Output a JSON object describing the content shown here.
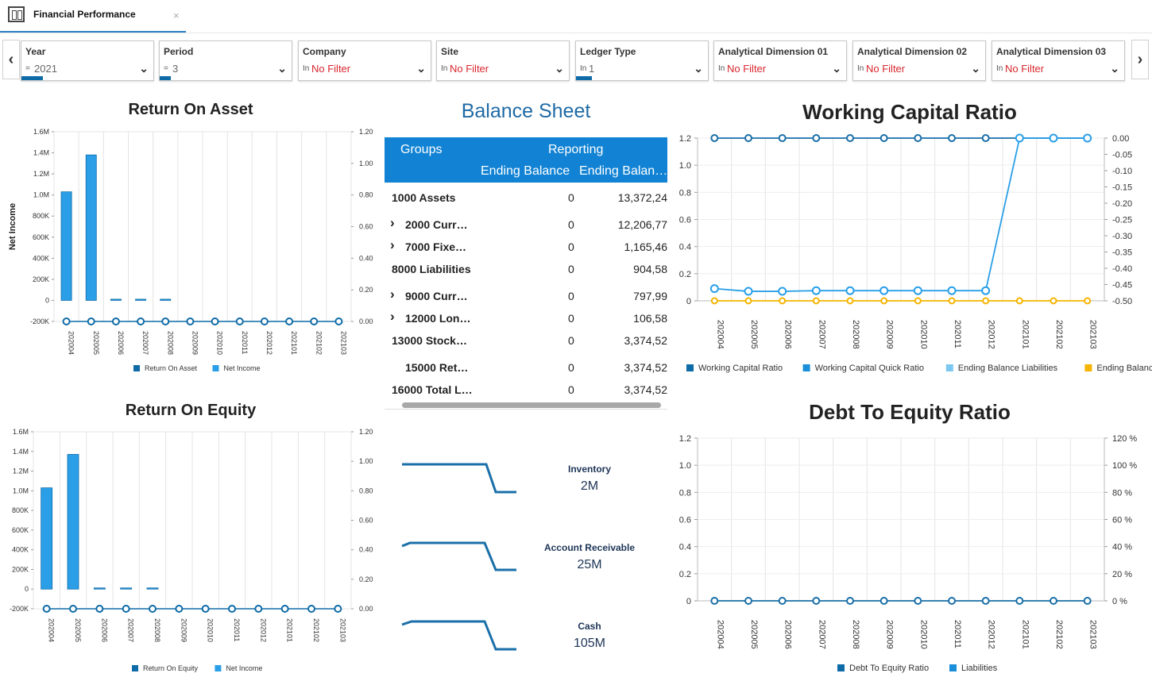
{
  "tab": {
    "title": "Financial Performance",
    "close": "×"
  },
  "filters": [
    {
      "label": "Year",
      "op": "=",
      "value": "2021",
      "red": false
    },
    {
      "label": "Period",
      "op": "=",
      "value": "3",
      "red": false
    },
    {
      "label": "Company",
      "op": "In",
      "value": "No Filter",
      "red": true
    },
    {
      "label": "Site",
      "op": "In",
      "value": "No Filter",
      "red": true
    },
    {
      "label": "Ledger Type",
      "op": "In",
      "value": "1",
      "red": false
    },
    {
      "label": "Analytical Dimension 01",
      "op": "In",
      "value": "No Filter",
      "red": true
    },
    {
      "label": "Analytical Dimension 02",
      "op": "In",
      "value": "No Filter",
      "red": true
    },
    {
      "label": "Analytical Dimension 03",
      "op": "In",
      "value": "No Filter",
      "red": true
    }
  ],
  "nav": {
    "prev": "‹",
    "next": "›"
  },
  "colors": {
    "accent": "#1283d4",
    "dark_blue": "#0e6ba8",
    "light_blue": "#2a9fe8",
    "pale_blue": "#7cc8f0",
    "orange": "#f5b400",
    "red": "#d9262c"
  },
  "charts": {
    "roa": {
      "type": "bar",
      "title": "Return On Asset",
      "ylabel": "Net Income",
      "categories": [
        "202004",
        "202005",
        "202006",
        "202007",
        "202008",
        "202009",
        "202010",
        "202011",
        "202012",
        "202101",
        "202102",
        "202103"
      ],
      "y_ticks": [
        "1.6M",
        "1.4M",
        "1.2M",
        "1.0M",
        "800K",
        "600K",
        "400K",
        "200K",
        "0",
        "-200K"
      ],
      "y2_ticks": [
        "1.20",
        "1.00",
        "0.80",
        "0.60",
        "0.40",
        "0.20",
        "0.00"
      ],
      "ylim": [
        -200000,
        1600000
      ],
      "y2lim": [
        0,
        1.2
      ],
      "series": [
        {
          "name": "Return On Asset",
          "kind": "line",
          "values": [
            0,
            0,
            0,
            0,
            0,
            0,
            0,
            0,
            0,
            0,
            0,
            0
          ]
        },
        {
          "name": "Net Income",
          "kind": "bar",
          "values": [
            1030000,
            1380000,
            5000,
            3000,
            2000,
            0,
            0,
            0,
            0,
            0,
            0,
            0
          ]
        }
      ]
    },
    "roe": {
      "type": "bar",
      "title": "Return On Equity",
      "categories": [
        "202004",
        "202005",
        "202006",
        "202007",
        "202008",
        "202009",
        "202010",
        "202011",
        "202012",
        "202101",
        "202102",
        "202103"
      ],
      "y_ticks": [
        "1.6M",
        "1.4M",
        "1.2M",
        "1.0M",
        "800K",
        "600K",
        "400K",
        "200K",
        "0",
        "-200K"
      ],
      "y2_ticks": [
        "1.20",
        "1.00",
        "0.80",
        "0.60",
        "0.40",
        "0.20",
        "0.00"
      ],
      "ylim": [
        -200000,
        1600000
      ],
      "y2lim": [
        0,
        1.2
      ],
      "series": [
        {
          "name": "Return On Equity",
          "kind": "line",
          "values": [
            0,
            0,
            0,
            0,
            0,
            0,
            0,
            0,
            0,
            0,
            0,
            0
          ]
        },
        {
          "name": "Net Income",
          "kind": "bar",
          "values": [
            1030000,
            1370000,
            10000,
            8000,
            5000,
            0,
            0,
            0,
            0,
            0,
            0,
            0
          ]
        }
      ]
    },
    "wcr": {
      "type": "line",
      "title": "Working Capital Ratio",
      "categories": [
        "202004",
        "202005",
        "202006",
        "202007",
        "202008",
        "202009",
        "202010",
        "202011",
        "202012",
        "202101",
        "202102",
        "202103"
      ],
      "y_ticks": [
        "1.2",
        "1.0",
        "0.8",
        "0.6",
        "0.4",
        "0.2",
        "0"
      ],
      "y2_ticks": [
        "0.00",
        "-0.05",
        "-0.10",
        "-0.15",
        "-0.20",
        "-0.25",
        "-0.30",
        "-0.35",
        "-0.40",
        "-0.45",
        "-0.50"
      ],
      "ylim": [
        0,
        1.2
      ],
      "y2lim": [
        -0.5,
        0
      ],
      "series": [
        {
          "name": "Working Capital Ratio",
          "axis": "y2",
          "values": [
            0,
            0,
            0,
            0,
            0,
            0,
            0,
            0,
            0,
            0,
            0,
            0
          ]
        },
        {
          "name": "Working Capital Quick Ratio",
          "axis": "y",
          "values": [
            0.09,
            0.07,
            0.07,
            0.075,
            0.075,
            0.075,
            0.075,
            0.075,
            0.075,
            1.2,
            1.2,
            1.2
          ]
        },
        {
          "name": "Ending Balance Liabilities",
          "axis": "y",
          "values": []
        },
        {
          "name": "Ending Balance Equity",
          "axis": "y",
          "values": [
            0,
            0,
            0,
            0,
            0,
            0,
            0,
            0,
            0,
            0,
            0,
            0
          ]
        }
      ]
    },
    "dte": {
      "type": "line",
      "title": "Debt To Equity Ratio",
      "categories": [
        "202004",
        "202005",
        "202006",
        "202007",
        "202008",
        "202009",
        "202010",
        "202011",
        "202012",
        "202101",
        "202102",
        "202103"
      ],
      "y_ticks": [
        "1.2",
        "1.0",
        "0.8",
        "0.6",
        "0.4",
        "0.2",
        "0"
      ],
      "y2_ticks": [
        "120 %",
        "100 %",
        "80 %",
        "60 %",
        "40 %",
        "20 %",
        "0 %"
      ],
      "ylim": [
        0,
        1.2
      ],
      "series": [
        {
          "name": "Debt To Equity Ratio",
          "values": [
            0,
            0,
            0,
            0,
            0,
            0,
            0,
            0,
            0,
            0,
            0,
            0
          ]
        },
        {
          "name": "Liabilities",
          "values": []
        }
      ]
    }
  },
  "balance_sheet": {
    "title": "Balance Sheet",
    "header": {
      "groups": "Groups",
      "reporting": "Reporting",
      "col1": "Ending Balance",
      "col2": "Ending Balan…"
    },
    "rows": [
      {
        "group": "1000 Assets",
        "expand": false,
        "indent": false,
        "end1": "0",
        "end2": "13,372,24"
      },
      {
        "group": "2000 Curr…",
        "expand": true,
        "indent": true,
        "end1": "0",
        "end2": "12,206,77"
      },
      {
        "group": "7000 Fixe…",
        "expand": true,
        "indent": true,
        "end1": "0",
        "end2": "1,165,46"
      },
      {
        "group": "8000 Liabilities",
        "expand": false,
        "indent": false,
        "end1": "0",
        "end2": "904,58"
      },
      {
        "group": "9000 Curr…",
        "expand": true,
        "indent": true,
        "end1": "0",
        "end2": "797,99"
      },
      {
        "group": "12000 Lon…",
        "expand": true,
        "indent": true,
        "end1": "0",
        "end2": "106,58"
      },
      {
        "group": "13000 Stock…",
        "expand": false,
        "indent": false,
        "end1": "0",
        "end2": "3,374,52"
      },
      {
        "group": "15000 Ret…",
        "expand": false,
        "indent": true,
        "end1": "0",
        "end2": "3,374,52"
      },
      {
        "group": "16000 Total L…",
        "expand": false,
        "indent": false,
        "end1": "0",
        "end2": "3,374,52"
      }
    ]
  },
  "kpis": [
    {
      "label": "Inventory",
      "value": "2M"
    },
    {
      "label": "Account Receivable",
      "value": "25M"
    },
    {
      "label": "Cash",
      "value": "105M"
    }
  ]
}
